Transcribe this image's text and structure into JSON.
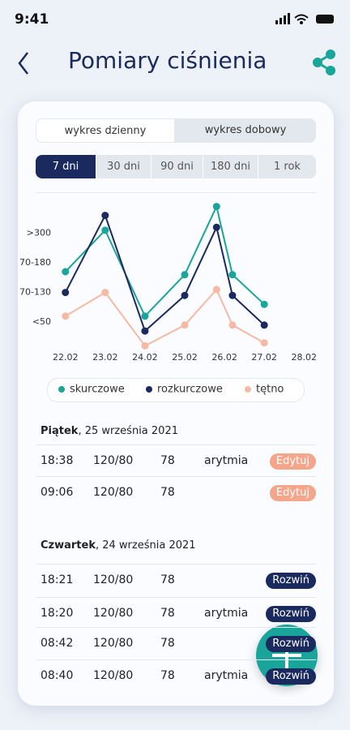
{
  "status": {
    "time": "9:41"
  },
  "header": {
    "title": "Pomiary ciśnienia"
  },
  "tabs": [
    "wykres dzienny",
    "wykres dobowy"
  ],
  "ranges": [
    "7 dni",
    "30 dni",
    "90 dni",
    "180 dni",
    "1 rok"
  ],
  "chart_data": {
    "type": "line",
    "x": [
      22,
      23,
      24,
      25,
      25.8,
      26.2,
      27
    ],
    "xlim": [
      21.7,
      28.3
    ],
    "xticks": [
      {
        "value": 22,
        "label": "22.02"
      },
      {
        "value": 23,
        "label": "23.02"
      },
      {
        "value": 24,
        "label": "24.02"
      },
      {
        "value": 25,
        "label": "25.02"
      },
      {
        "value": 26,
        "label": "26.02"
      },
      {
        "value": 27,
        "label": "27.02"
      },
      {
        "value": 28,
        "label": "28.02"
      }
    ],
    "ylim": [
      -0.9,
      4.3
    ],
    "yticks": [
      {
        "value": 3,
        "label": ">300"
      },
      {
        "value": 2,
        "label": "70-180"
      },
      {
        "value": 1,
        "label": "70-130"
      },
      {
        "value": 0,
        "label": "<50"
      }
    ],
    "series": [
      {
        "name": "skurczowe",
        "color": "#1aa59a",
        "values": [
          1.7,
          3.1,
          0.2,
          1.6,
          3.9,
          1.6,
          0.6
        ]
      },
      {
        "name": "rozkurczowe",
        "color": "#1b2a5e",
        "values": [
          1.0,
          3.6,
          -0.3,
          0.9,
          3.2,
          0.9,
          -0.1
        ]
      },
      {
        "name": "tętno",
        "color": "#f7b9a3",
        "values": [
          0.2,
          1.0,
          -0.8,
          -0.1,
          1.1,
          -0.1,
          -0.7
        ]
      }
    ]
  },
  "days": [
    {
      "day": "Piątek",
      "date": ", 25 września 2021",
      "entries": [
        {
          "time": "18:38",
          "pressure": "120/80",
          "pulse": "78",
          "note": "arytmia",
          "action": "Edytuj"
        },
        {
          "time": "09:06",
          "pressure": "120/80",
          "pulse": "78",
          "action": "Edytuj"
        }
      ]
    },
    {
      "day": "Czwartek",
      "date": ", 24 września 2021",
      "entries": [
        {
          "time": "18:21",
          "pressure": "120/80",
          "pulse": "78",
          "action": "Rozwiń"
        },
        {
          "time": "18:20",
          "pressure": "120/80",
          "pulse": "78",
          "note": "arytmia",
          "action": "Rozwiń"
        },
        {
          "time": "08:42",
          "pressure": "120/80",
          "pulse": "78",
          "action": "Rozwiń"
        },
        {
          "time": "08:40",
          "pressure": "120/80",
          "pulse": "78",
          "note": "arytmia",
          "action": "Rozwiń"
        }
      ]
    }
  ]
}
